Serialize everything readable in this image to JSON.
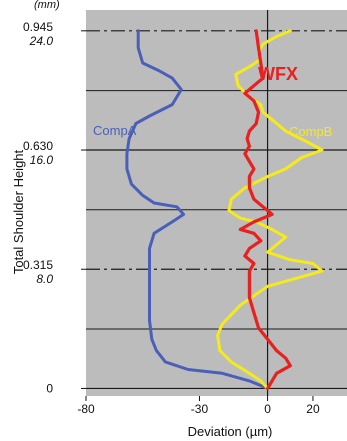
{
  "chart_data": {
    "type": "line",
    "title": "",
    "xlabel": "Deviation (µm)",
    "ylabel": "Total Shoulder Height",
    "y_unit": "(mm)",
    "xlim": [
      -80,
      35
    ],
    "ylim": [
      -0.02,
      1.0
    ],
    "x_ticks": [
      -80,
      -30,
      0,
      20
    ],
    "y_ticks": [
      {
        "value": 0.945,
        "label": "0.945",
        "sub": "24.0"
      },
      {
        "value": 0.63,
        "label": "0.630",
        "sub": "16.0"
      },
      {
        "value": 0.315,
        "label": "0.315",
        "sub": "8.0"
      },
      {
        "value": 0,
        "label": "0",
        "sub": ""
      }
    ],
    "gridlines_y": [
      0,
      0.157,
      0.315,
      0.472,
      0.63,
      0.787,
      0.945
    ],
    "grid": true,
    "background_color": "#bcbcbc",
    "series": [
      {
        "name": "CompA",
        "color": "#4a5fb8",
        "points": [
          [
            -57,
            0.945
          ],
          [
            -57,
            0.9
          ],
          [
            -55,
            0.86
          ],
          [
            -48,
            0.84
          ],
          [
            -42,
            0.82
          ],
          [
            -38,
            0.79
          ],
          [
            -42,
            0.75
          ],
          [
            -52,
            0.72
          ],
          [
            -58,
            0.7
          ],
          [
            -61,
            0.66
          ],
          [
            -62,
            0.62
          ],
          [
            -62,
            0.58
          ],
          [
            -60,
            0.54
          ],
          [
            -55,
            0.51
          ],
          [
            -50,
            0.49
          ],
          [
            -40,
            0.48
          ],
          [
            -37,
            0.46
          ],
          [
            -42,
            0.44
          ],
          [
            -50,
            0.41
          ],
          [
            -52,
            0.37
          ],
          [
            -52,
            0.3
          ],
          [
            -52,
            0.24
          ],
          [
            -52,
            0.18
          ],
          [
            -51,
            0.13
          ],
          [
            -49,
            0.1
          ],
          [
            -45,
            0.07
          ],
          [
            -35,
            0.05
          ],
          [
            -20,
            0.04
          ],
          [
            -8,
            0.02
          ],
          [
            0,
            0.0
          ]
        ]
      },
      {
        "name": "CompB",
        "color": "#f5ea1a",
        "points": [
          [
            10,
            0.945
          ],
          [
            4,
            0.93
          ],
          [
            -2,
            0.91
          ],
          [
            -4,
            0.89
          ],
          [
            -3,
            0.87
          ],
          [
            -8,
            0.85
          ],
          [
            -14,
            0.83
          ],
          [
            -13,
            0.8
          ],
          [
            -8,
            0.77
          ],
          [
            -3,
            0.75
          ],
          [
            -2,
            0.73
          ],
          [
            2,
            0.71
          ],
          [
            8,
            0.68
          ],
          [
            18,
            0.65
          ],
          [
            24,
            0.63
          ],
          [
            15,
            0.61
          ],
          [
            8,
            0.58
          ],
          [
            0,
            0.56
          ],
          [
            -10,
            0.53
          ],
          [
            -16,
            0.5
          ],
          [
            -17,
            0.47
          ],
          [
            -12,
            0.45
          ],
          [
            -5,
            0.44
          ],
          [
            2,
            0.42
          ],
          [
            8,
            0.4
          ],
          [
            4,
            0.38
          ],
          [
            0,
            0.36
          ],
          [
            10,
            0.34
          ],
          [
            20,
            0.33
          ],
          [
            24,
            0.31
          ],
          [
            12,
            0.29
          ],
          [
            0,
            0.27
          ],
          [
            -12,
            0.22
          ],
          [
            -20,
            0.17
          ],
          [
            -22,
            0.14
          ],
          [
            -21,
            0.1
          ],
          [
            -16,
            0.07
          ],
          [
            -8,
            0.04
          ],
          [
            -3,
            0.02
          ],
          [
            0,
            0.0
          ]
        ]
      },
      {
        "name": "WFX",
        "color": "#e82020",
        "points": [
          [
            -5,
            0.945
          ],
          [
            -4,
            0.9
          ],
          [
            -3,
            0.86
          ],
          [
            -2,
            0.82
          ],
          [
            -6,
            0.8
          ],
          [
            -10,
            0.78
          ],
          [
            -6,
            0.76
          ],
          [
            -4,
            0.73
          ],
          [
            -5,
            0.7
          ],
          [
            -8,
            0.68
          ],
          [
            -9,
            0.66
          ],
          [
            -8,
            0.64
          ],
          [
            -10,
            0.62
          ],
          [
            -8,
            0.6
          ],
          [
            -6,
            0.58
          ],
          [
            -8,
            0.56
          ],
          [
            -8,
            0.53
          ],
          [
            -6,
            0.5
          ],
          [
            -2,
            0.48
          ],
          [
            2,
            0.46
          ],
          [
            -6,
            0.44
          ],
          [
            -12,
            0.42
          ],
          [
            -6,
            0.41
          ],
          [
            -3,
            0.39
          ],
          [
            -8,
            0.37
          ],
          [
            -10,
            0.35
          ],
          [
            -6,
            0.33
          ],
          [
            -8,
            0.31
          ],
          [
            -8,
            0.28
          ],
          [
            -8,
            0.24
          ],
          [
            -6,
            0.2
          ],
          [
            -4,
            0.16
          ],
          [
            0,
            0.13
          ],
          [
            4,
            0.1
          ],
          [
            8,
            0.08
          ],
          [
            10,
            0.06
          ],
          [
            4,
            0.04
          ],
          [
            0,
            0.0
          ]
        ]
      }
    ]
  },
  "labels": {
    "compA": "CompA",
    "compB": "CompB",
    "wfx": "WFX"
  }
}
